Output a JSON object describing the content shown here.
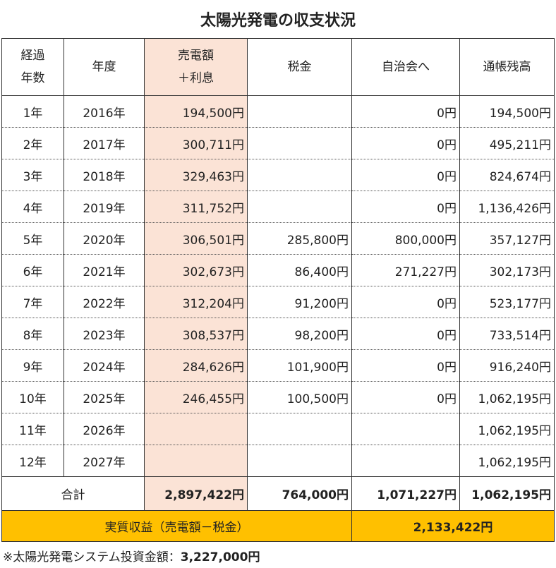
{
  "title": "太陽光発電の収支状況",
  "headers": {
    "years_line1": "経過",
    "years_line2": "年数",
    "year": "年度",
    "sales_line1": "売電額",
    "sales_line2": "＋利息",
    "tax": "税金",
    "association": "自治会へ",
    "balance": "通帳残高"
  },
  "rows": [
    {
      "n": "1年",
      "year": "2016年",
      "sales": "194,500円",
      "tax": "",
      "assoc": "0円",
      "balance": "194,500円"
    },
    {
      "n": "2年",
      "year": "2017年",
      "sales": "300,711円",
      "tax": "",
      "assoc": "0円",
      "balance": "495,211円"
    },
    {
      "n": "3年",
      "year": "2018年",
      "sales": "329,463円",
      "tax": "",
      "assoc": "0円",
      "balance": "824,674円"
    },
    {
      "n": "4年",
      "year": "2019年",
      "sales": "311,752円",
      "tax": "",
      "assoc": "0円",
      "balance": "1,136,426円"
    },
    {
      "n": "5年",
      "year": "2020年",
      "sales": "306,501円",
      "tax": "285,800円",
      "assoc": "800,000円",
      "balance": "357,127円"
    },
    {
      "n": "6年",
      "year": "2021年",
      "sales": "302,673円",
      "tax": "86,400円",
      "assoc": "271,227円",
      "balance": "302,173円"
    },
    {
      "n": "7年",
      "year": "2022年",
      "sales": "312,204円",
      "tax": "91,200円",
      "assoc": "0円",
      "balance": "523,177円"
    },
    {
      "n": "8年",
      "year": "2023年",
      "sales": "308,537円",
      "tax": "98,200円",
      "assoc": "0円",
      "balance": "733,514円"
    },
    {
      "n": "9年",
      "year": "2024年",
      "sales": "284,626円",
      "tax": "101,900円",
      "assoc": "0円",
      "balance": "916,240円"
    },
    {
      "n": "10年",
      "year": "2025年",
      "sales": "246,455円",
      "tax": "100,500円",
      "assoc": "0円",
      "balance": "1,062,195円"
    },
    {
      "n": "11年",
      "year": "2026年",
      "sales": "",
      "tax": "",
      "assoc": "",
      "balance": "1,062,195円"
    },
    {
      "n": "12年",
      "year": "2027年",
      "sales": "",
      "tax": "",
      "assoc": "",
      "balance": "1,062,195円"
    }
  ],
  "total": {
    "label": "合計",
    "sales": "2,897,422円",
    "tax": "764,000円",
    "assoc": "1,071,227円",
    "balance": "1,062,195円"
  },
  "net": {
    "label": "実質収益（売電額－税金）",
    "value": "2,133,422円"
  },
  "note": {
    "prefix": "※太陽光発電システム投資金額：",
    "value": "3,227,000円"
  },
  "colors": {
    "sales_column": "#fbe3d6",
    "net_row": "#ffc000"
  }
}
